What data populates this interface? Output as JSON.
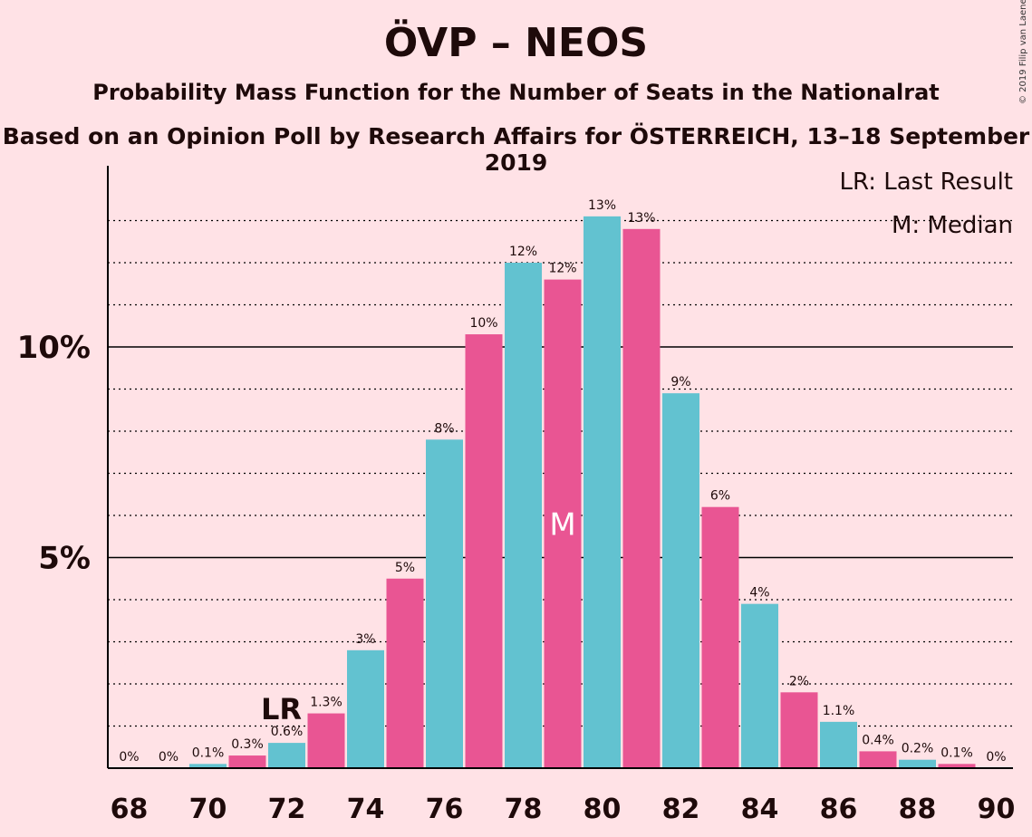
{
  "header": {
    "title": "ÖVP – NEOS",
    "subtitle": "Probability Mass Function for the Number of Seats in the Nationalrat",
    "source": "Based on an Opinion Poll by Research Affairs for ÖSTERREICH, 13–18 September 2019",
    "copyright": "© 2019 Filip van Laenen"
  },
  "legend": {
    "lr": "LR: Last Result",
    "median": "M: Median"
  },
  "markers": {
    "lr_label": "LR",
    "lr_seat": 72,
    "median_label": "M",
    "median_seat": 79
  },
  "colors": {
    "background": "#ffe2e6",
    "bar_even": "#62c2d0",
    "bar_odd": "#e95593",
    "text": "#1e0a0a"
  },
  "chart_data": {
    "type": "bar",
    "x": [
      68,
      69,
      70,
      71,
      72,
      73,
      74,
      75,
      76,
      77,
      78,
      79,
      80,
      81,
      82,
      83,
      84,
      85,
      86,
      87,
      88,
      89,
      90
    ],
    "values": [
      0,
      0,
      0.1,
      0.3,
      0.6,
      1.3,
      2.8,
      4.5,
      7.8,
      10.3,
      12.0,
      11.6,
      13.1,
      12.8,
      8.9,
      6.2,
      3.9,
      1.8,
      1.1,
      0.4,
      0.2,
      0.1,
      0
    ],
    "labels": [
      "0%",
      "0%",
      "0.1%",
      "0.3%",
      "0.6%",
      "1.3%",
      "3%",
      "5%",
      "8%",
      "10%",
      "12%",
      "12%",
      "13%",
      "13%",
      "9%",
      "6%",
      "4%",
      "2%",
      "1.1%",
      "0.4%",
      "0.2%",
      "0.1%",
      "0%"
    ],
    "xticks": [
      "68",
      "70",
      "72",
      "74",
      "76",
      "78",
      "80",
      "82",
      "84",
      "86",
      "88",
      "90"
    ],
    "yticks": [
      "5%",
      "10%"
    ],
    "ylim": [
      0,
      14
    ],
    "ylabel_unit": "%",
    "grid": "dotted every 1%, solid at 5% and 10%"
  }
}
